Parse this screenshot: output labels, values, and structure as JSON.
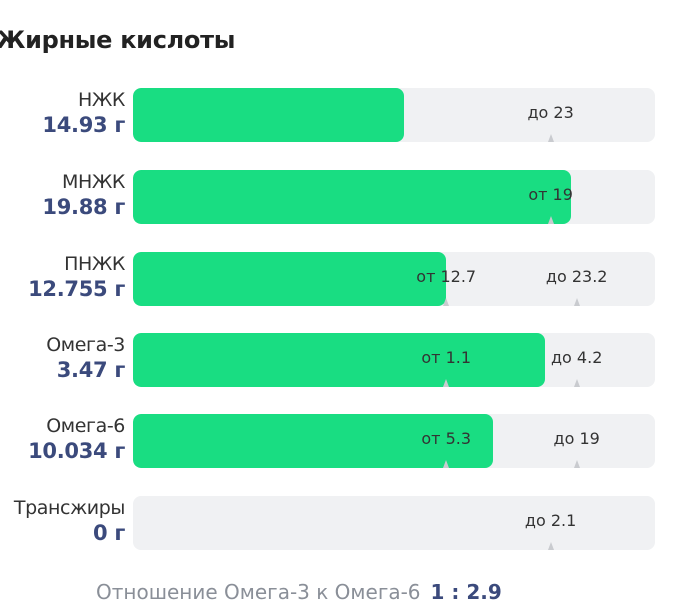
{
  "title": "Жирные кислоты",
  "colors": {
    "fill": "#19dd82",
    "track": "#f0f1f3",
    "value": "#3b4a7c"
  },
  "rows": [
    {
      "name": "НЖК",
      "value": "14.93 г",
      "fill_fraction": 0.52,
      "markers": [
        {
          "label": "до 23",
          "pos": 0.8
        }
      ]
    },
    {
      "name": "МНЖК",
      "value": "19.88 г",
      "fill_fraction": 0.84,
      "markers": [
        {
          "label": "от 19",
          "pos": 0.8
        }
      ]
    },
    {
      "name": "ПНЖК",
      "value": "12.755 г",
      "fill_fraction": 0.6,
      "markers": [
        {
          "label": "от 12.7",
          "pos": 0.6
        },
        {
          "label": "до 23.2",
          "pos": 0.85
        }
      ]
    },
    {
      "name": "Омега-3",
      "value": "3.47 г",
      "fill_fraction": 0.79,
      "markers": [
        {
          "label": "от 1.1",
          "pos": 0.6
        },
        {
          "label": "до 4.2",
          "pos": 0.85
        }
      ]
    },
    {
      "name": "Омега-6",
      "value": "10.034 г",
      "fill_fraction": 0.69,
      "markers": [
        {
          "label": "от 5.3",
          "pos": 0.6
        },
        {
          "label": "до 19",
          "pos": 0.85
        }
      ]
    },
    {
      "name": "Трансжиры",
      "value": "0 г",
      "fill_fraction": 0,
      "markers": [
        {
          "label": "до 2.1",
          "pos": 0.8
        }
      ]
    }
  ],
  "ratio": {
    "label": "Отношение Омега-3 к Омега-6",
    "value": "1 : 2.9"
  }
}
